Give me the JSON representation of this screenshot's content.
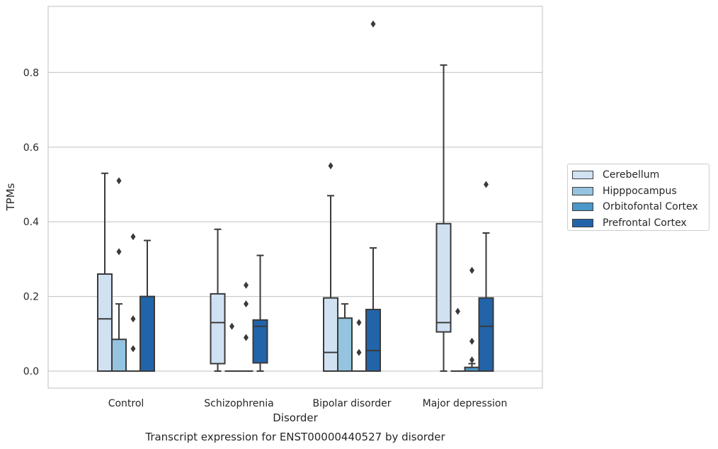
{
  "chart_data": {
    "type": "box",
    "caption": "Transcript expression for ENST00000440527 by disorder",
    "xlabel": "Disorder",
    "ylabel": "TPMs",
    "ylim": [
      -0.045,
      0.98
    ],
    "yticks": [
      "0.0",
      "0.2",
      "0.4",
      "0.6",
      "0.8"
    ],
    "ytick_values": [
      0.0,
      0.2,
      0.4,
      0.6,
      0.8
    ],
    "grid": "horizontal",
    "legend_position": "right",
    "categories": [
      "Control",
      "Schizophrenia",
      "Bipolar disorder",
      "Major depression"
    ],
    "series": [
      {
        "name": "Cerebellum",
        "color": "#d0e1f2",
        "boxes": [
          {
            "whislo": 0.0,
            "q1": 0.0,
            "med": 0.14,
            "q3": 0.26,
            "whishi": 0.53,
            "fliers": []
          },
          {
            "whislo": 0.0,
            "q1": 0.02,
            "med": 0.13,
            "q3": 0.207,
            "whishi": 0.38,
            "fliers": []
          },
          {
            "whislo": 0.0,
            "q1": 0.0,
            "med": 0.05,
            "q3": 0.196,
            "whishi": 0.47,
            "fliers": [
              0.55
            ]
          },
          {
            "whislo": 0.0,
            "q1": 0.105,
            "med": 0.13,
            "q3": 0.395,
            "whishi": 0.82,
            "fliers": []
          }
        ]
      },
      {
        "name": "Hipppocampus",
        "color": "#94c4df",
        "boxes": [
          {
            "whislo": 0.0,
            "q1": 0.0,
            "med": 0.0,
            "q3": 0.085,
            "whishi": 0.18,
            "fliers": [
              0.51,
              0.32
            ]
          },
          {
            "whislo": 0.0,
            "q1": 0.0,
            "med": 0.0,
            "q3": 0.0,
            "whishi": 0.0,
            "fliers": [
              0.12
            ]
          },
          {
            "whislo": 0.0,
            "q1": 0.0,
            "med": 0.0,
            "q3": 0.142,
            "whishi": 0.18,
            "fliers": []
          },
          {
            "whislo": 0.0,
            "q1": 0.0,
            "med": 0.0,
            "q3": 0.0,
            "whishi": 0.0,
            "fliers": [
              0.16
            ]
          }
        ]
      },
      {
        "name": "Orbitofontal Cortex",
        "color": "#4a98c9",
        "boxes": [
          {
            "whislo": 0.0,
            "q1": 0.0,
            "med": 0.0,
            "q3": 0.0,
            "whishi": 0.0,
            "fliers": [
              0.36,
              0.14,
              0.06
            ]
          },
          {
            "whislo": 0.0,
            "q1": 0.0,
            "med": 0.0,
            "q3": 0.0,
            "whishi": 0.0,
            "fliers": [
              0.23,
              0.18,
              0.09
            ]
          },
          {
            "whislo": 0.0,
            "q1": 0.0,
            "med": 0.0,
            "q3": 0.0,
            "whishi": 0.0,
            "fliers": [
              0.13,
              0.05
            ]
          },
          {
            "whislo": 0.0,
            "q1": 0.0,
            "med": 0.0,
            "q3": 0.01,
            "whishi": 0.02,
            "fliers": [
              0.27,
              0.08,
              0.03
            ]
          }
        ]
      },
      {
        "name": "Prefrontal Cortex",
        "color": "#2264a9",
        "boxes": [
          {
            "whislo": 0.0,
            "q1": 0.0,
            "med": 0.0,
            "q3": 0.2,
            "whishi": 0.35,
            "fliers": []
          },
          {
            "whislo": 0.0,
            "q1": 0.022,
            "med": 0.12,
            "q3": 0.137,
            "whishi": 0.31,
            "fliers": []
          },
          {
            "whislo": 0.0,
            "q1": 0.0,
            "med": 0.055,
            "q3": 0.165,
            "whishi": 0.33,
            "fliers": [
              0.93
            ]
          },
          {
            "whislo": 0.0,
            "q1": 0.0,
            "med": 0.12,
            "q3": 0.196,
            "whishi": 0.37,
            "fliers": [
              0.5
            ]
          }
        ]
      }
    ]
  }
}
